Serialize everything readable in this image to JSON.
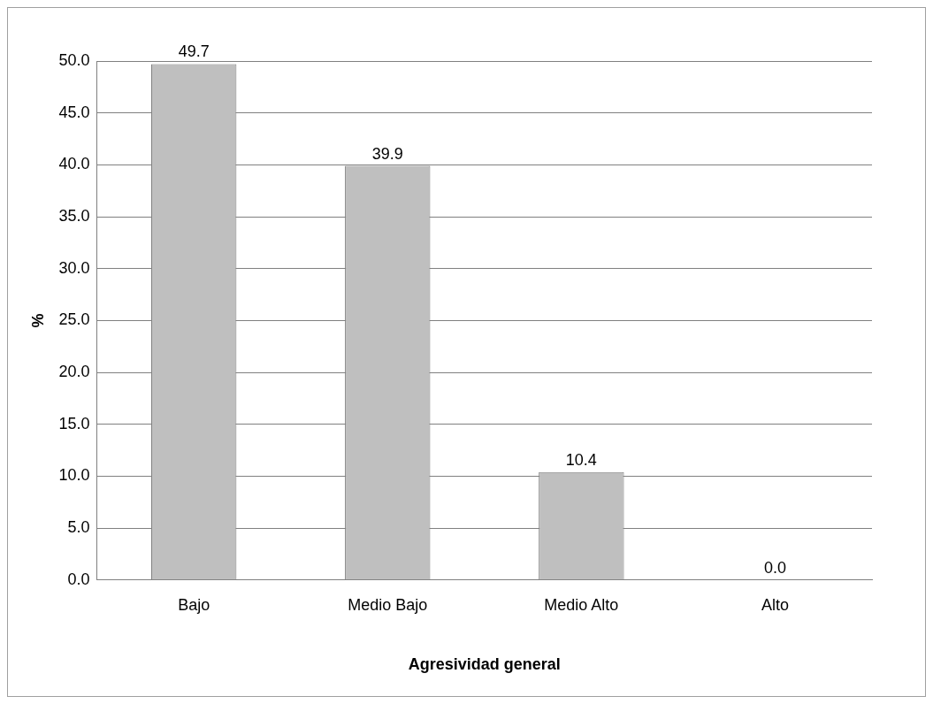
{
  "chart_data": {
    "type": "bar",
    "xlabel": "Agresividad general",
    "ylabel": "%",
    "categories": [
      "Bajo",
      "Medio Bajo",
      "Medio Alto",
      "Alto"
    ],
    "values": [
      49.7,
      39.9,
      10.4,
      0.0
    ],
    "color": "#bfbfbf",
    "ylim": [
      0,
      50
    ],
    "yticks": [
      {
        "value": 0,
        "label": "0.0"
      },
      {
        "value": 5,
        "label": "5.0"
      },
      {
        "value": 10,
        "label": "10.0"
      },
      {
        "value": 15,
        "label": "15.0"
      },
      {
        "value": 20,
        "label": "20.0"
      },
      {
        "value": 25,
        "label": "25.0"
      },
      {
        "value": 30,
        "label": "30.0"
      },
      {
        "value": 35,
        "label": "35.0"
      },
      {
        "value": 40,
        "label": "40.0"
      },
      {
        "value": 45,
        "label": "45.0"
      },
      {
        "value": 50,
        "label": "50.0"
      }
    ],
    "value_labels": [
      "49.7",
      "39.9",
      "10.4",
      "0.0"
    ],
    "grid": "y",
    "legend": false
  }
}
